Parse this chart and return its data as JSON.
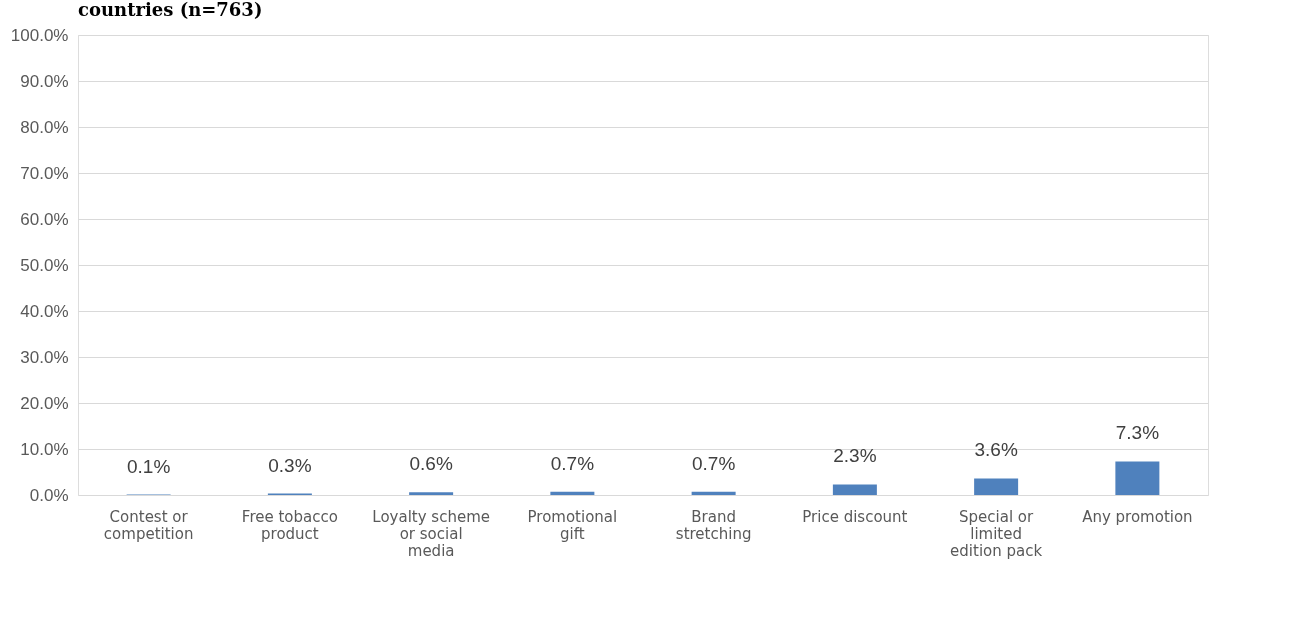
{
  "chart_data": {
    "type": "bar",
    "title": "countries (n=763)",
    "categories": [
      "Contest or competition",
      "Free tobacco product",
      "Loyalty scheme or social media",
      "Promotional gift",
      "Brand stretching",
      "Price discount",
      "Special or limited edition pack",
      "Any promotion"
    ],
    "values": [
      0.1,
      0.3,
      0.6,
      0.7,
      0.7,
      2.3,
      3.6,
      7.3
    ],
    "value_labels": [
      "0.1%",
      "0.3%",
      "0.6%",
      "0.7%",
      "0.7%",
      "2.3%",
      "3.6%",
      "7.3%"
    ],
    "color": "#4f81bd",
    "ylim": [
      0,
      100
    ],
    "yticks": [
      {
        "value": 0,
        "label": "0.0%"
      },
      {
        "value": 10,
        "label": "10.0%"
      },
      {
        "value": 20,
        "label": "20.0%"
      },
      {
        "value": 30,
        "label": "30.0%"
      },
      {
        "value": 40,
        "label": "40.0%"
      },
      {
        "value": 50,
        "label": "50.0%"
      },
      {
        "value": 60,
        "label": "60.0%"
      },
      {
        "value": 70,
        "label": "70.0%"
      },
      {
        "value": 80,
        "label": "80.0%"
      },
      {
        "value": 90,
        "label": "90.0%"
      },
      {
        "value": 100,
        "label": "100.0%"
      }
    ],
    "grid": "y"
  }
}
